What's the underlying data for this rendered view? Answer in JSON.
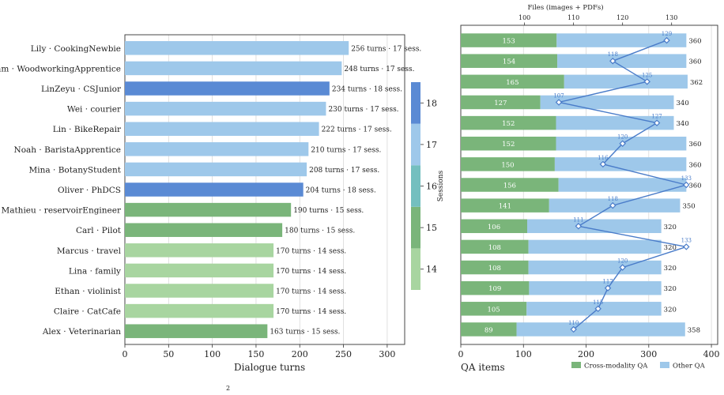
{
  "chart_data": [
    {
      "type": "bar",
      "orientation": "horizontal",
      "xlabel": "Dialogue turns",
      "xlim": [
        0,
        320
      ],
      "xticks": [
        0,
        50,
        100,
        150,
        200,
        250,
        300
      ],
      "grid": "vertical",
      "categories": [
        "Lily · CookingNewbie",
        "Liam · WoodworkingApprentice",
        "LinZeyu · CSJunior",
        "Wei · courier",
        "Lin · BikeRepair",
        "Noah · BaristaApprentice",
        "Mina · BotanyStudent",
        "Oliver · PhDCS",
        "Mathieu · reservoirEngineer",
        "Carl · Pilot",
        "Marcus · travel",
        "Lina · family",
        "Ethan · violinist",
        "Claire · CatCafe",
        "Alex · Veterinarian"
      ],
      "values": [
        256,
        248,
        234,
        230,
        222,
        210,
        208,
        204,
        190,
        180,
        170,
        170,
        170,
        170,
        163
      ],
      "sessions": [
        17,
        17,
        18,
        17,
        17,
        17,
        17,
        18,
        15,
        15,
        14,
        14,
        14,
        14,
        15
      ],
      "bar_labels": [
        "256 turns · 17 sess.",
        "248 turns · 17 sess.",
        "234 turns · 18 sess.",
        "230 turns · 17 sess.",
        "222 turns · 17 sess.",
        "210 turns · 17 sess.",
        "208 turns · 17 sess.",
        "204 turns · 18 sess.",
        "190 turns · 15 sess.",
        "180 turns · 15 sess.",
        "170 turns · 14 sess.",
        "170 turns · 14 sess.",
        "170 turns · 14 sess.",
        "170 turns · 14 sess.",
        "163 turns · 15 sess."
      ],
      "colorbar": {
        "label": "Sessions",
        "levels": [
          14,
          15,
          16,
          17,
          18
        ],
        "colors": [
          "#a8d5a0",
          "#7ab57a",
          "#74bfbf",
          "#9ec8ea",
          "#5a8ad4"
        ]
      }
    },
    {
      "type": "bar",
      "stacked": true,
      "orientation": "horizontal",
      "xlabel": "QA items",
      "xlim": [
        0,
        410
      ],
      "xticks": [
        0,
        100,
        200,
        300,
        400
      ],
      "grid": "vertical",
      "categories": [
        "Lily · CookingNewbie",
        "Liam · WoodworkingApprentice",
        "LinZeyu · CSJunior",
        "Wei · courier",
        "Lin · BikeRepair",
        "Noah · BaristaApprentice",
        "Mina · BotanyStudent",
        "Oliver · PhDCS",
        "Mathieu · reservoirEngineer",
        "Carl · Pilot",
        "Marcus · travel",
        "Lina · family",
        "Ethan · violinist",
        "Claire · CatCafe",
        "Alex · Veterinarian"
      ],
      "series": [
        {
          "name": "Cross-modality QA",
          "color": "#7ab57a",
          "values": [
            153,
            154,
            165,
            127,
            152,
            152,
            150,
            156,
            141,
            106,
            108,
            108,
            109,
            105,
            89
          ]
        },
        {
          "name": "Other QA",
          "color": "#9ec8ea",
          "values": [
            207,
            206,
            197,
            213,
            188,
            208,
            210,
            204,
            209,
            214,
            212,
            212,
            211,
            215,
            269
          ]
        }
      ],
      "totals": [
        360,
        360,
        362,
        340,
        340,
        360,
        360,
        360,
        350,
        320,
        320,
        320,
        320,
        320,
        358
      ],
      "legend_position": "bottom-right",
      "secondary_axis": {
        "label": "Files (images + PDFs)",
        "xlim": [
          87,
          139.4
        ],
        "xticks": [
          100,
          110,
          120,
          130
        ],
        "color": "#4a7cc9",
        "values": [
          129,
          118,
          125,
          107,
          127,
          120,
          116,
          133,
          118,
          111,
          133,
          120,
          117,
          115,
          110
        ]
      }
    }
  ],
  "figure": {
    "truncated_caption_text": "2"
  }
}
